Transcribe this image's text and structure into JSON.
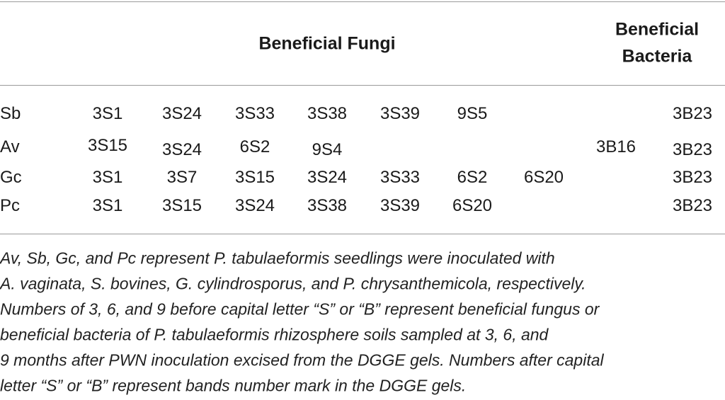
{
  "header": {
    "fungi": "Beneficial Fungi",
    "bacteria": [
      "Beneficial",
      "Bacteria"
    ]
  },
  "table": {
    "rows": [
      {
        "label": "Sb",
        "cells": [
          "3S1",
          "3S24",
          "3S33",
          "3S38",
          "3S39",
          "9S5",
          null,
          null,
          "3B23"
        ]
      },
      {
        "label": "Av",
        "cells": [
          "3S15",
          "3S24",
          "6S2",
          "9S4",
          null,
          null,
          null,
          "3B16",
          "3B23"
        ]
      },
      {
        "label": "Gc",
        "cells": [
          "3S1",
          "3S7",
          "3S15",
          "3S24",
          "3S33",
          "6S2",
          "6S20",
          null,
          "3B23"
        ]
      },
      {
        "label": "Pc",
        "cells": [
          "3S1",
          "3S15",
          "3S24",
          "3S38",
          "3S39",
          "6S20",
          null,
          null,
          "3B23"
        ]
      }
    ]
  },
  "footnote": [
    "Av, Sb, Gc, and Pc represent P. tabulaeformis seedlings were inoculated with",
    "A. vaginata, S. bovines, G. cylindrosporus, and P. chrysanthemicola, respectively.",
    "Numbers of 3, 6, and 9 before capital letter “S” or “B” represent beneficial fungus or",
    "beneficial bacteria of P. tabulaeformis rhizosphere soils sampled at 3, 6, and",
    "9 months after PWN inoculation excised from the DGGE gels. Numbers after capital",
    "letter “S” or “B” represent bands number mark in the DGGE gels."
  ]
}
